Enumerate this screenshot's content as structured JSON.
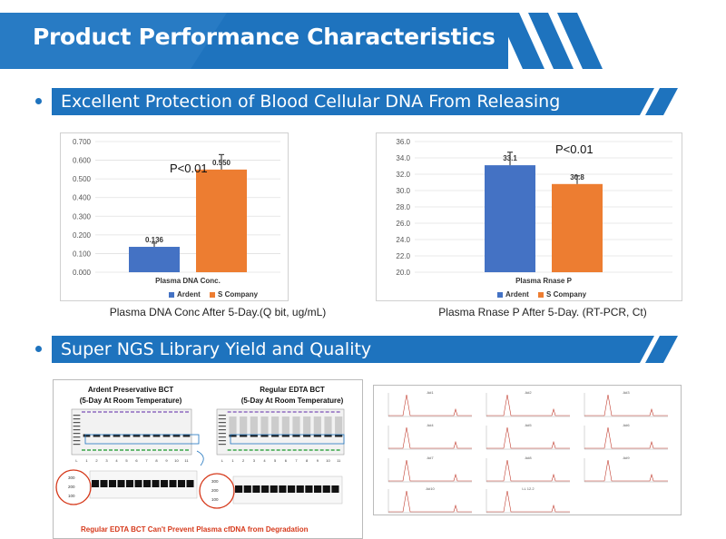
{
  "header": {
    "title": "Product Performance Characteristics"
  },
  "sections": [
    {
      "title": "Excellent Protection of Blood Cellular DNA From Releasing"
    },
    {
      "title": "Super NGS Library Yield and Quality"
    }
  ],
  "colors": {
    "ardent": "#4472c4",
    "s_company": "#ed7d31",
    "banner": "#1e73be",
    "accent_red": "#d63a1c"
  },
  "chart_data": [
    {
      "type": "bar",
      "categories": [
        "Plasma DNA Conc."
      ],
      "series": [
        {
          "name": "Ardent",
          "values": [
            0.136
          ],
          "error": [
            0.02
          ]
        },
        {
          "name": "S Company",
          "values": [
            0.55
          ],
          "error": [
            0.08
          ]
        }
      ],
      "value_labels": [
        "0.136",
        "0.550"
      ],
      "ylim": [
        0,
        0.7
      ],
      "yticks": [
        "0.000",
        "0.100",
        "0.200",
        "0.300",
        "0.400",
        "0.500",
        "0.600",
        "0.700"
      ],
      "annotation": "P<0.01",
      "caption": "Plasma DNA Conc After 5-Day.(Q bit, ug/mL)",
      "legend": "bottom"
    },
    {
      "type": "bar",
      "categories": [
        "Plasma Rnase P"
      ],
      "series": [
        {
          "name": "Ardent",
          "values": [
            33.1
          ],
          "error": [
            1.6
          ]
        },
        {
          "name": "S Company",
          "values": [
            30.8
          ],
          "error": [
            1.0
          ]
        }
      ],
      "value_labels": [
        "33.1",
        "30.8"
      ],
      "ylim": [
        20,
        36
      ],
      "yticks": [
        "20.0",
        "22.0",
        "24.0",
        "26.0",
        "28.0",
        "30.0",
        "32.0",
        "34.0",
        "36.0"
      ],
      "annotation": "P<0.01",
      "caption": "Plasma Rnase P After 5-Day. (RT-PCR, Ct)",
      "legend": "bottom"
    }
  ],
  "gel": {
    "left_title_1": "Ardent Preservative BCT",
    "left_title_2": "(5-Day At Room Temperature)",
    "right_title_1": "Regular EDTA BCT",
    "right_title_2": "(5-Day At Room Temperature)",
    "lanes_left": [
      "L",
      "1",
      "2",
      "3",
      "4",
      "5",
      "6",
      "7",
      "8",
      "9",
      "10",
      "11"
    ],
    "lanes_right": [
      "L",
      "1",
      "2",
      "3",
      "4",
      "5",
      "6",
      "7",
      "8",
      "9",
      "10",
      "11"
    ],
    "zoom_markers": [
      "300",
      "200",
      "100"
    ],
    "caption": "Regular EDTA BCT Can't Prevent  Plasma cfDNA from Degradation"
  },
  "traces": {
    "labels": [
      "A#1",
      "A#2",
      "A#3",
      "A#4",
      "A#5",
      "A#6",
      "A#7",
      "A#8",
      "A#9",
      "A#10",
      "LL 12.2"
    ]
  }
}
